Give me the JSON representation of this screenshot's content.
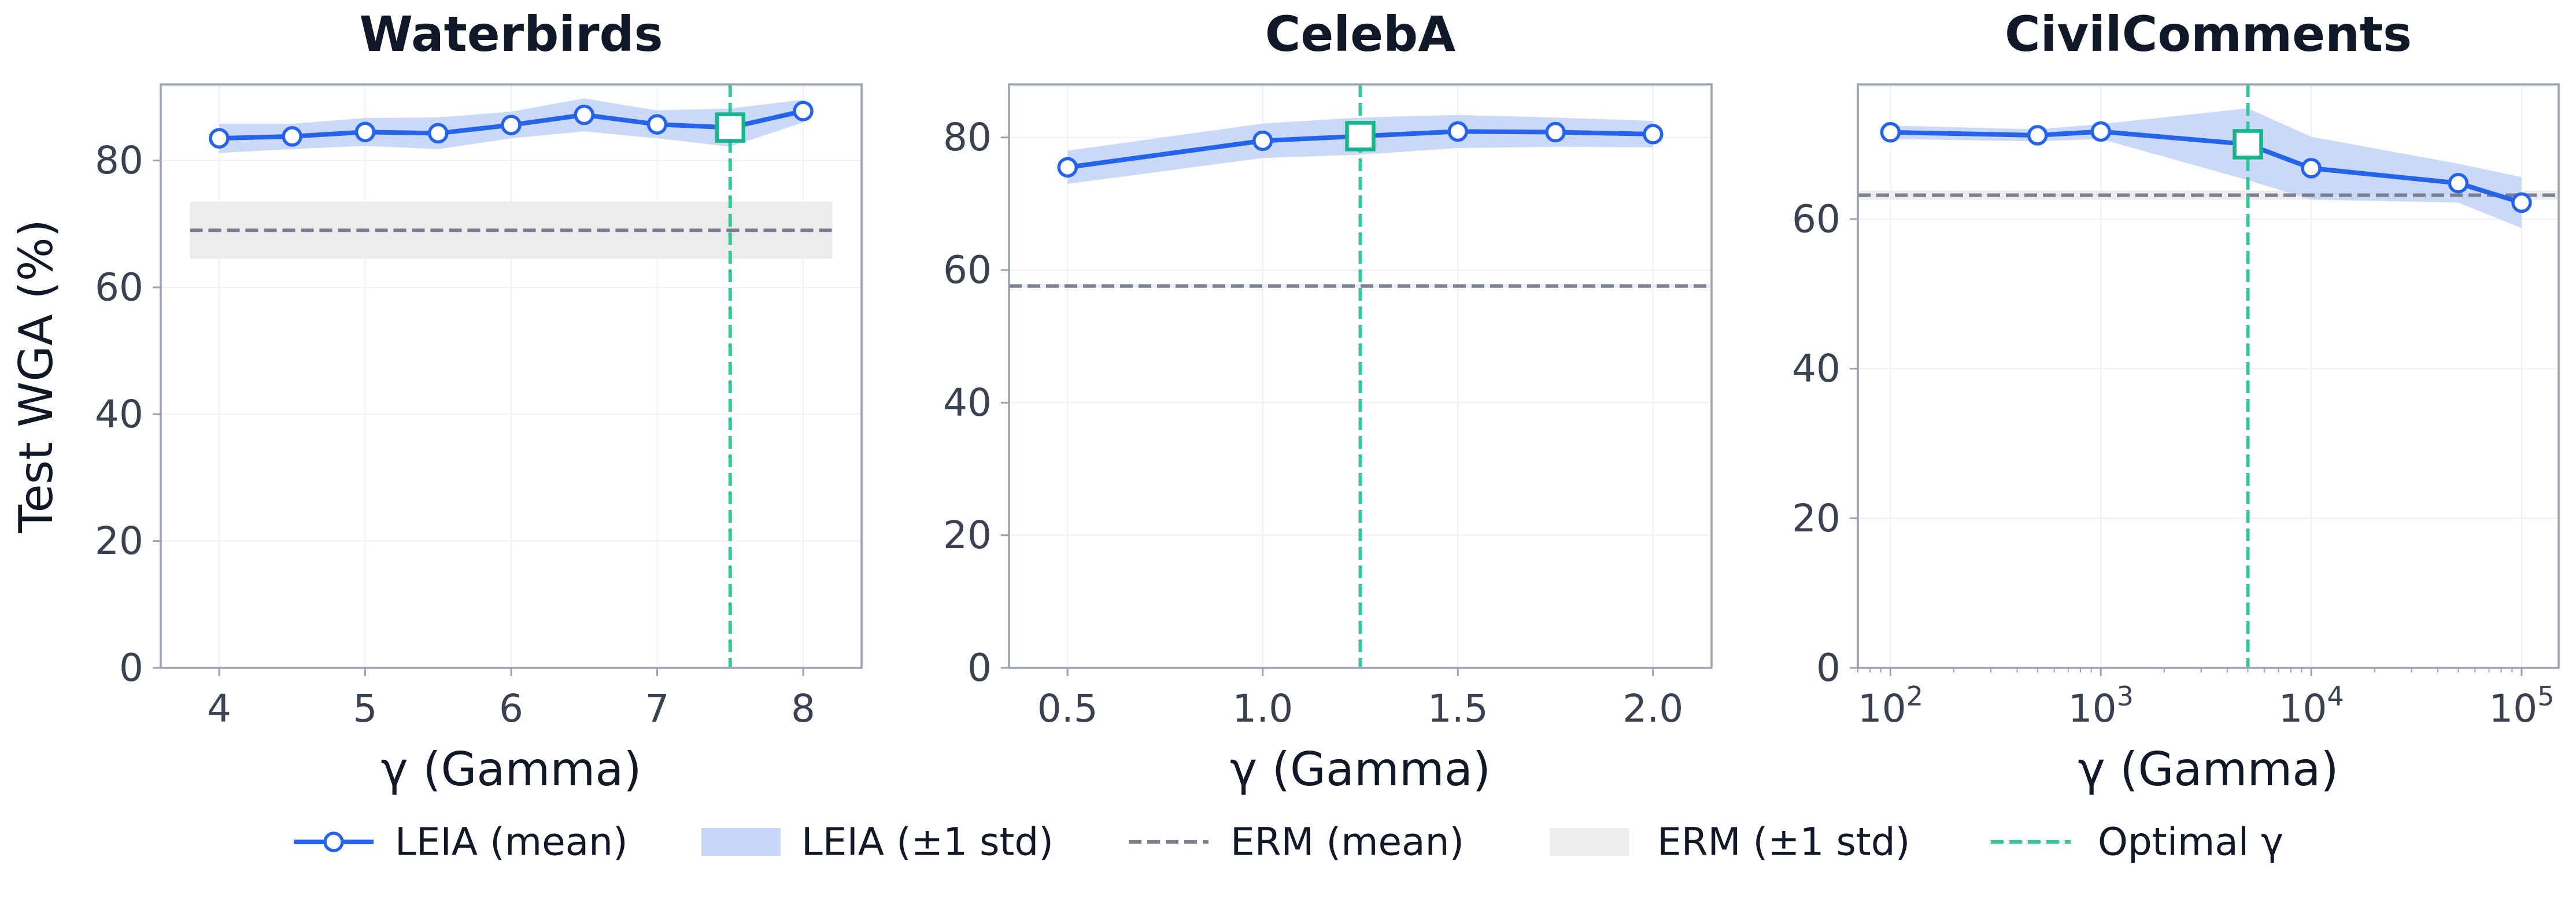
{
  "colors": {
    "leia_line": "#2563eb",
    "leia_band": "#c7d7f7",
    "erm_line": "#7a808f",
    "erm_band": "#ececec",
    "optimal": "#34c79a",
    "axis_frame": "#9aa1b0",
    "title": "#111827",
    "tick_label": "#3a4151"
  },
  "legend": {
    "leia_mean": "LEIA (mean)",
    "leia_std": "LEIA (±1 std)",
    "erm_mean": "ERM (mean)",
    "erm_std": "ERM (±1 std)",
    "optimal": "Optimal γ"
  },
  "chart_data": [
    {
      "type": "line",
      "title": "Waterbirds",
      "xlabel": "γ (Gamma)",
      "ylabel": "Test WGA (%)",
      "xscale": "linear",
      "xlim": [
        3.6,
        8.4
      ],
      "ylim": [
        0,
        92
      ],
      "xticks": [
        4,
        5,
        6,
        7,
        8
      ],
      "xtick_labels": [
        "4",
        "5",
        "6",
        "7",
        "8"
      ],
      "yticks": [
        0,
        20,
        40,
        60,
        80
      ],
      "yticklabels": [
        "0",
        "20",
        "40",
        "60",
        "80"
      ],
      "grid": true,
      "series": [
        {
          "name": "LEIA (mean)",
          "x": [
            4,
            4.5,
            5,
            5.5,
            6,
            6.5,
            7,
            7.5,
            8
          ],
          "values": [
            83.5,
            83.8,
            84.5,
            84.3,
            85.6,
            87.2,
            85.7,
            85.2,
            87.8
          ],
          "std": [
            2.3,
            2.0,
            2.2,
            2.5,
            2.1,
            2.6,
            2.2,
            3.0,
            1.8
          ]
        }
      ],
      "erm": {
        "mean": 69.0,
        "std": 4.5,
        "x_range": [
          3.8,
          8.2
        ]
      },
      "optimal_x": 7.5,
      "optimal_y": 85.2
    },
    {
      "type": "line",
      "title": "CelebA",
      "xlabel": "γ (Gamma)",
      "ylabel": "",
      "xscale": "linear",
      "xlim": [
        0.35,
        2.15
      ],
      "ylim": [
        0,
        88
      ],
      "xticks": [
        0.5,
        1.0,
        1.5,
        2.0
      ],
      "xtick_labels": [
        "0.5",
        "1.0",
        "1.5",
        "2.0"
      ],
      "yticks": [
        0,
        20,
        40,
        60,
        80
      ],
      "yticklabels": [
        "0",
        "20",
        "40",
        "60",
        "80"
      ],
      "grid": true,
      "series": [
        {
          "name": "LEIA (mean)",
          "x": [
            0.5,
            1.0,
            1.25,
            1.5,
            1.75,
            2.0
          ],
          "values": [
            75.5,
            79.5,
            80.2,
            80.9,
            80.8,
            80.5
          ],
          "std": [
            2.5,
            2.6,
            2.8,
            2.5,
            2.2,
            2.0
          ]
        }
      ],
      "erm": {
        "mean": 57.6,
        "std": 0.3,
        "x_range": [
          0.35,
          2.15
        ]
      },
      "optimal_x": 1.25,
      "optimal_y": 80.2
    },
    {
      "type": "line",
      "title": "CivilComments",
      "xlabel": "γ (Gamma)",
      "ylabel": "",
      "xscale": "log",
      "xlim": [
        70,
        150000
      ],
      "ylim": [
        0,
        78
      ],
      "xticks": [
        100,
        1000,
        10000,
        100000
      ],
      "xtick_labels": [
        "10",
        "10",
        "10",
        "10"
      ],
      "xtick_exponents": [
        "2",
        "3",
        "4",
        "5"
      ],
      "yticks": [
        0,
        20,
        40,
        60
      ],
      "yticklabels": [
        "0",
        "20",
        "40",
        "60"
      ],
      "grid": true,
      "series": [
        {
          "name": "LEIA (mean)",
          "x": [
            100,
            500,
            1000,
            5000,
            10000,
            50000,
            100000
          ],
          "values": [
            71.6,
            71.2,
            71.7,
            70.0,
            66.8,
            64.8,
            62.2
          ],
          "std": [
            0.9,
            0.8,
            1.0,
            4.8,
            4.2,
            2.6,
            3.4
          ]
        }
      ],
      "erm": {
        "mean": 63.2,
        "std": 0.6,
        "x_range": [
          70,
          150000
        ]
      },
      "optimal_x": 5000,
      "optimal_y": 70.0
    }
  ]
}
